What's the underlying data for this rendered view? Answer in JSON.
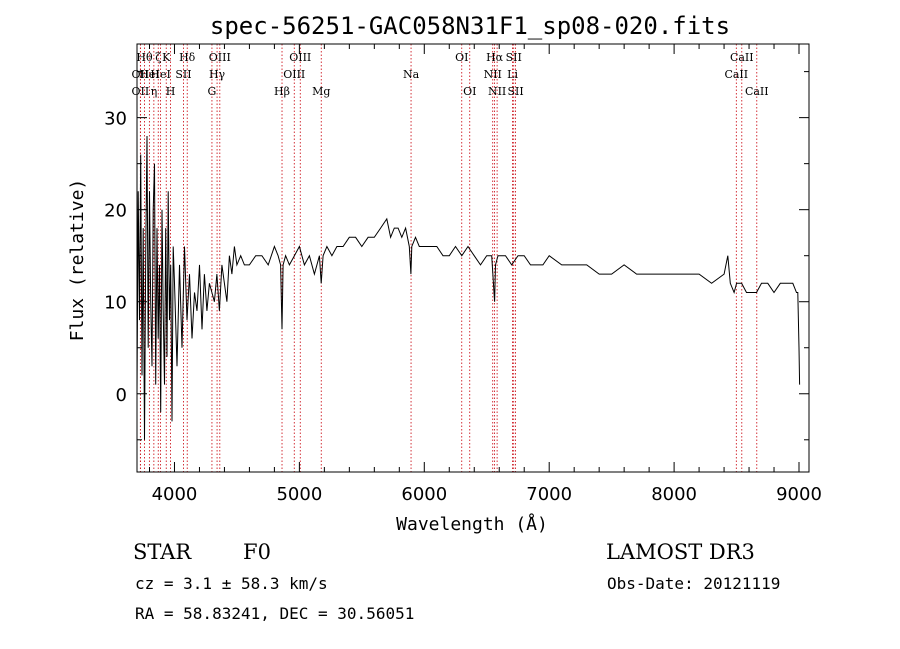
{
  "chart_data": {
    "type": "line",
    "title": "spec-56251-GAC058N31F1_sp08-020.fits",
    "xlabel": "Wavelength (Å)",
    "ylabel": "Flux (relative)",
    "xlim": [
      3700,
      9080
    ],
    "ylim": [
      -8.5,
      38
    ],
    "xticks": [
      4000,
      5000,
      6000,
      7000,
      8000,
      9000
    ],
    "yticks": [
      0,
      10,
      20,
      30
    ],
    "grid": false,
    "series": [
      {
        "name": "flux",
        "x": [
          3700,
          3710,
          3720,
          3730,
          3740,
          3750,
          3760,
          3770,
          3780,
          3790,
          3800,
          3810,
          3820,
          3830,
          3840,
          3850,
          3860,
          3870,
          3880,
          3890,
          3900,
          3910,
          3920,
          3930,
          3940,
          3950,
          3960,
          3970,
          3980,
          3990,
          4000,
          4020,
          4040,
          4060,
          4080,
          4100,
          4120,
          4140,
          4160,
          4180,
          4200,
          4220,
          4240,
          4260,
          4280,
          4300,
          4320,
          4340,
          4360,
          4380,
          4400,
          4420,
          4440,
          4460,
          4480,
          4500,
          4530,
          4560,
          4600,
          4650,
          4700,
          4750,
          4800,
          4830,
          4850,
          4861,
          4870,
          4890,
          4920,
          4960,
          5000,
          5040,
          5080,
          5120,
          5160,
          5175,
          5190,
          5220,
          5260,
          5300,
          5350,
          5400,
          5450,
          5500,
          5550,
          5600,
          5650,
          5700,
          5730,
          5760,
          5790,
          5820,
          5850,
          5880,
          5893,
          5900,
          5930,
          5960,
          6000,
          6050,
          6100,
          6150,
          6200,
          6250,
          6300,
          6350,
          6400,
          6450,
          6500,
          6540,
          6563,
          6570,
          6590,
          6620,
          6650,
          6700,
          6750,
          6800,
          6850,
          6900,
          6950,
          7000,
          7100,
          7200,
          7300,
          7400,
          7500,
          7600,
          7700,
          7800,
          7900,
          8000,
          8100,
          8200,
          8300,
          8400,
          8430,
          8450,
          8480,
          8500,
          8540,
          8580,
          8620,
          8660,
          8700,
          8750,
          8800,
          8850,
          8900,
          8950,
          8980,
          8990,
          9000,
          9005
        ],
        "y": [
          0,
          22,
          8,
          26,
          2,
          18,
          -5,
          15,
          28,
          5,
          22,
          10,
          3,
          20,
          25,
          1,
          18,
          6,
          14,
          -2,
          20,
          9,
          1,
          18,
          4,
          22,
          8,
          14,
          -3,
          16,
          12,
          3,
          14,
          5,
          16,
          8,
          13,
          6,
          11,
          9,
          14,
          7,
          13,
          9,
          12,
          11,
          10,
          13,
          9,
          14,
          12,
          10,
          15,
          13,
          16,
          14,
          15,
          14,
          14,
          15,
          15,
          14,
          16,
          15,
          14,
          7,
          14,
          15,
          14,
          15,
          16,
          14,
          15,
          13,
          15,
          12,
          15,
          16,
          15,
          16,
          16,
          17,
          17,
          16,
          17,
          17,
          18,
          19,
          17,
          18,
          18,
          17,
          18,
          16,
          13,
          16,
          17,
          16,
          16,
          16,
          16,
          15,
          15,
          16,
          15,
          16,
          15,
          14,
          15,
          15,
          10,
          14,
          15,
          15,
          15,
          14,
          15,
          15,
          14,
          14,
          14,
          15,
          14,
          14,
          14,
          13,
          13,
          14,
          13,
          13,
          13,
          13,
          13,
          13,
          12,
          13,
          15,
          12,
          11,
          12,
          12,
          11,
          11,
          11,
          12,
          12,
          11,
          12,
          12,
          12,
          11,
          11,
          5,
          1
        ]
      }
    ],
    "line_marker_rows": [
      "top",
      "middle",
      "bottom"
    ],
    "line_markers": [
      {
        "wavelength": 3727,
        "label": "OII",
        "row": "middle"
      },
      {
        "wavelength": 3727,
        "label": "OII",
        "row": "bottom"
      },
      {
        "wavelength": 3760,
        "label": "Hθ",
        "row": "top"
      },
      {
        "wavelength": 3799,
        "label": "HeI",
        "row": "middle"
      },
      {
        "wavelength": 3835,
        "label": "η",
        "row": "bottom"
      },
      {
        "wavelength": 3870,
        "label": "ζ",
        "row": "top"
      },
      {
        "wavelength": 3889,
        "label": "HeI",
        "row": "middle"
      },
      {
        "wavelength": 3934,
        "label": "K",
        "row": "top"
      },
      {
        "wavelength": 3969,
        "label": "H",
        "row": "bottom"
      },
      {
        "wavelength": 4072,
        "label": "SII",
        "row": "middle"
      },
      {
        "wavelength": 4102,
        "label": "Hδ",
        "row": "top"
      },
      {
        "wavelength": 4300,
        "label": "G",
        "row": "bottom"
      },
      {
        "wavelength": 4341,
        "label": "Hγ",
        "row": "middle"
      },
      {
        "wavelength": 4363,
        "label": "OIII",
        "row": "top"
      },
      {
        "wavelength": 4861,
        "label": "Hβ",
        "row": "bottom"
      },
      {
        "wavelength": 4959,
        "label": "OIII",
        "row": "middle"
      },
      {
        "wavelength": 5007,
        "label": "OIII",
        "row": "top"
      },
      {
        "wavelength": 5175,
        "label": "Mg",
        "row": "bottom"
      },
      {
        "wavelength": 5894,
        "label": "Na",
        "row": "middle"
      },
      {
        "wavelength": 6300,
        "label": "OI",
        "row": "top"
      },
      {
        "wavelength": 6364,
        "label": "OI",
        "row": "bottom"
      },
      {
        "wavelength": 6548,
        "label": "NII",
        "row": "middle"
      },
      {
        "wavelength": 6563,
        "label": "Hα",
        "row": "top"
      },
      {
        "wavelength": 6583,
        "label": "NII",
        "row": "bottom"
      },
      {
        "wavelength": 6707,
        "label": "Li",
        "row": "middle"
      },
      {
        "wavelength": 6716,
        "label": "SII",
        "row": "top"
      },
      {
        "wavelength": 6731,
        "label": "SII",
        "row": "bottom"
      },
      {
        "wavelength": 8498,
        "label": "CaII",
        "row": "middle"
      },
      {
        "wavelength": 8542,
        "label": "CaII",
        "row": "top"
      },
      {
        "wavelength": 8662,
        "label": "CaII",
        "row": "bottom"
      }
    ],
    "colors": {
      "spectrum": "#000000",
      "markers": "#c8000a",
      "axes": "#000000"
    }
  },
  "info": {
    "object_class": "STAR",
    "subclass": "F0",
    "survey": "LAMOST DR3",
    "redshift": "cz = 3.1 ± 58.3 km/s",
    "obs_date": "Obs-Date: 20121119",
    "coords": "RA =  58.83241, DEC =  30.56051"
  }
}
